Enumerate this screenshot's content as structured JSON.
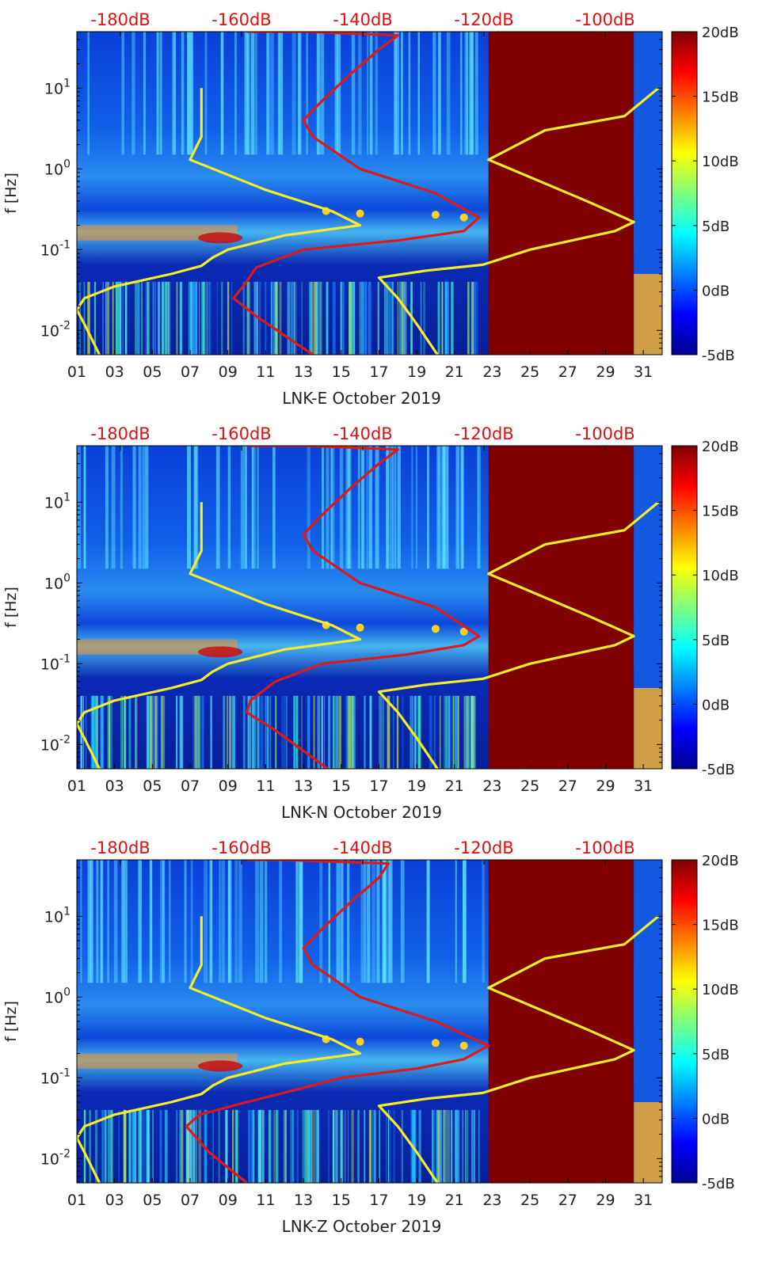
{
  "chart_data": [
    {
      "type": "heatmap",
      "xlabel": "LNK-E October 2019",
      "ylabel": "f [Hz]",
      "x_ticks": [
        "01",
        "03",
        "05",
        "07",
        "09",
        "11",
        "13",
        "15",
        "17",
        "19",
        "21",
        "23",
        "25",
        "27",
        "29",
        "31"
      ],
      "x_range_days": [
        1,
        32
      ],
      "y_scale": "log",
      "y_ticks": [
        "10^-2",
        "10^-1",
        "10^0",
        "10^1"
      ],
      "y_range_hz": [
        0.005,
        50
      ],
      "colorbar": {
        "ticks": [
          "-5dB",
          "0dB",
          "5dB",
          "10dB",
          "15dB",
          "20dB"
        ],
        "range_db": [
          -5,
          20
        ],
        "colormap": "jet"
      },
      "top_axis": {
        "ticks": [
          "-180dB",
          "-160dB",
          "-140dB",
          "-120dB",
          "-100dB"
        ],
        "color": "#dd1111"
      },
      "gap_days": [
        22.8,
        30.5
      ],
      "series": [
        {
          "color": "#f5ec2a",
          "points": [
            [
              2.2,
              0.005
            ],
            [
              1.4,
              0.012
            ],
            [
              1.0,
              0.018
            ],
            [
              1.4,
              0.025
            ],
            [
              3.0,
              0.035
            ],
            [
              6.0,
              0.05
            ],
            [
              7.6,
              0.063
            ],
            [
              8.2,
              0.08
            ],
            [
              9.0,
              0.1
            ],
            [
              12.0,
              0.15
            ],
            [
              16.0,
              0.2
            ],
            [
              14.5,
              0.3
            ],
            [
              11.0,
              0.55
            ],
            [
              7.0,
              1.3
            ],
            [
              7.6,
              2.5
            ],
            [
              7.6,
              10
            ]
          ]
        },
        {
          "color": "#dd1a1a",
          "points": [
            [
              13.5,
              0.005
            ],
            [
              10.5,
              0.015
            ],
            [
              9.3,
              0.025
            ],
            [
              9.8,
              0.035
            ],
            [
              10.5,
              0.06
            ],
            [
              13.0,
              0.1
            ],
            [
              18.0,
              0.13
            ],
            [
              21.5,
              0.17
            ],
            [
              22.3,
              0.25
            ],
            [
              20.0,
              0.5
            ],
            [
              16.0,
              1.0
            ],
            [
              13.5,
              2.5
            ],
            [
              13.0,
              4.0
            ],
            [
              14.0,
              7.0
            ],
            [
              15.5,
              15.0
            ],
            [
              17.0,
              30.0
            ],
            [
              18.0,
              45.0
            ],
            [
              15.0,
              48.0
            ],
            [
              13.0,
              50.0
            ],
            [
              10.0,
              50.0
            ]
          ]
        },
        {
          "color": "#f5ec2a",
          "points": [
            [
              20.1,
              0.005
            ],
            [
              19.0,
              0.012
            ],
            [
              18.0,
              0.025
            ],
            [
              17.0,
              0.045
            ],
            [
              19.5,
              0.055
            ],
            [
              22.5,
              0.065
            ],
            [
              25.0,
              0.1
            ],
            [
              29.5,
              0.17
            ],
            [
              30.5,
              0.22
            ],
            [
              28.0,
              0.4
            ],
            [
              22.8,
              1.3
            ],
            [
              25.8,
              3.0
            ],
            [
              30.0,
              4.5
            ],
            [
              31.8,
              10.0
            ]
          ]
        }
      ]
    },
    {
      "type": "heatmap",
      "xlabel": "LNK-N October 2019",
      "ylabel": "f [Hz]",
      "x_ticks": [
        "01",
        "03",
        "05",
        "07",
        "09",
        "11",
        "13",
        "15",
        "17",
        "19",
        "21",
        "23",
        "25",
        "27",
        "29",
        "31"
      ],
      "x_range_days": [
        1,
        32
      ],
      "y_scale": "log",
      "y_ticks": [
        "10^-2",
        "10^-1",
        "10^0",
        "10^1"
      ],
      "y_range_hz": [
        0.005,
        50
      ],
      "colorbar": {
        "ticks": [
          "-5dB",
          "0dB",
          "5dB",
          "10dB",
          "15dB",
          "20dB"
        ],
        "range_db": [
          -5,
          20
        ],
        "colormap": "jet"
      },
      "top_axis": {
        "ticks": [
          "-180dB",
          "-160dB",
          "-140dB",
          "-120dB",
          "-100dB"
        ],
        "color": "#dd1111"
      },
      "gap_days": [
        22.8,
        30.5
      ],
      "series": [
        {
          "color": "#f5ec2a",
          "points": [
            [
              2.2,
              0.005
            ],
            [
              1.4,
              0.012
            ],
            [
              1.0,
              0.018
            ],
            [
              1.4,
              0.025
            ],
            [
              3.0,
              0.035
            ],
            [
              6.0,
              0.05
            ],
            [
              7.6,
              0.063
            ],
            [
              8.2,
              0.08
            ],
            [
              9.0,
              0.1
            ],
            [
              12.0,
              0.15
            ],
            [
              16.0,
              0.2
            ],
            [
              14.5,
              0.3
            ],
            [
              11.0,
              0.55
            ],
            [
              7.0,
              1.3
            ],
            [
              7.6,
              2.5
            ],
            [
              7.6,
              10
            ]
          ]
        },
        {
          "color": "#dd1a1a",
          "points": [
            [
              14.3,
              0.005
            ],
            [
              11.5,
              0.015
            ],
            [
              10.0,
              0.025
            ],
            [
              10.2,
              0.035
            ],
            [
              11.5,
              0.06
            ],
            [
              14.0,
              0.1
            ],
            [
              18.5,
              0.13
            ],
            [
              21.5,
              0.17
            ],
            [
              22.3,
              0.22
            ],
            [
              20.0,
              0.5
            ],
            [
              16.0,
              1.0
            ],
            [
              13.5,
              2.5
            ],
            [
              13.0,
              4.0
            ],
            [
              14.0,
              7.0
            ],
            [
              15.5,
              15.0
            ],
            [
              17.0,
              30.0
            ],
            [
              18.0,
              45.0
            ],
            [
              15.0,
              48.0
            ],
            [
              13.0,
              50.0
            ],
            [
              10.0,
              50.0
            ]
          ]
        },
        {
          "color": "#f5ec2a",
          "points": [
            [
              20.1,
              0.005
            ],
            [
              19.0,
              0.012
            ],
            [
              18.0,
              0.025
            ],
            [
              17.0,
              0.045
            ],
            [
              19.5,
              0.055
            ],
            [
              22.5,
              0.065
            ],
            [
              25.0,
              0.1
            ],
            [
              29.5,
              0.17
            ],
            [
              30.5,
              0.22
            ],
            [
              28.0,
              0.4
            ],
            [
              22.8,
              1.3
            ],
            [
              25.8,
              3.0
            ],
            [
              30.0,
              4.5
            ],
            [
              31.8,
              10.0
            ]
          ]
        }
      ]
    },
    {
      "type": "heatmap",
      "xlabel": "LNK-Z October 2019",
      "ylabel": "f [Hz]",
      "x_ticks": [
        "01",
        "03",
        "05",
        "07",
        "09",
        "11",
        "13",
        "15",
        "17",
        "19",
        "21",
        "23",
        "25",
        "27",
        "29",
        "31"
      ],
      "x_range_days": [
        1,
        32
      ],
      "y_scale": "log",
      "y_ticks": [
        "10^-2",
        "10^-1",
        "10^0",
        "10^1"
      ],
      "y_range_hz": [
        0.005,
        50
      ],
      "colorbar": {
        "ticks": [
          "-5dB",
          "0dB",
          "5dB",
          "10dB",
          "15dB",
          "20dB"
        ],
        "range_db": [
          -5,
          20
        ],
        "colormap": "jet"
      },
      "top_axis": {
        "ticks": [
          "-180dB",
          "-160dB",
          "-140dB",
          "-120dB",
          "-100dB"
        ],
        "color": "#dd1111"
      },
      "gap_days": [
        22.8,
        30.5
      ],
      "series": [
        {
          "color": "#f5ec2a",
          "points": [
            [
              2.2,
              0.005
            ],
            [
              1.4,
              0.012
            ],
            [
              1.0,
              0.018
            ],
            [
              1.4,
              0.025
            ],
            [
              3.0,
              0.035
            ],
            [
              6.0,
              0.05
            ],
            [
              7.6,
              0.063
            ],
            [
              8.2,
              0.08
            ],
            [
              9.0,
              0.1
            ],
            [
              12.0,
              0.15
            ],
            [
              16.0,
              0.2
            ],
            [
              14.5,
              0.3
            ],
            [
              11.0,
              0.55
            ],
            [
              7.0,
              1.3
            ],
            [
              7.6,
              2.5
            ],
            [
              7.6,
              10
            ]
          ]
        },
        {
          "color": "#dd1a1a",
          "points": [
            [
              10.0,
              0.005
            ],
            [
              8.0,
              0.012
            ],
            [
              6.8,
              0.025
            ],
            [
              7.5,
              0.035
            ],
            [
              10.0,
              0.05
            ],
            [
              12.5,
              0.07
            ],
            [
              15.0,
              0.1
            ],
            [
              19.0,
              0.13
            ],
            [
              21.5,
              0.17
            ],
            [
              22.8,
              0.25
            ],
            [
              20.0,
              0.5
            ],
            [
              16.0,
              1.0
            ],
            [
              13.5,
              2.5
            ],
            [
              13.0,
              4.0
            ],
            [
              14.0,
              7.0
            ],
            [
              15.5,
              15.0
            ],
            [
              17.0,
              30.0
            ],
            [
              17.5,
              45.0
            ],
            [
              14.0,
              48.0
            ],
            [
              12.0,
              50.0
            ],
            [
              10.0,
              50.0
            ]
          ]
        },
        {
          "color": "#f5ec2a",
          "points": [
            [
              20.1,
              0.005
            ],
            [
              19.0,
              0.012
            ],
            [
              18.0,
              0.025
            ],
            [
              17.0,
              0.045
            ],
            [
              19.5,
              0.055
            ],
            [
              22.5,
              0.065
            ],
            [
              25.0,
              0.1
            ],
            [
              29.5,
              0.17
            ],
            [
              30.5,
              0.22
            ],
            [
              28.0,
              0.4
            ],
            [
              22.8,
              1.3
            ],
            [
              25.8,
              3.0
            ],
            [
              30.0,
              4.5
            ],
            [
              31.8,
              10.0
            ]
          ]
        }
      ]
    }
  ]
}
